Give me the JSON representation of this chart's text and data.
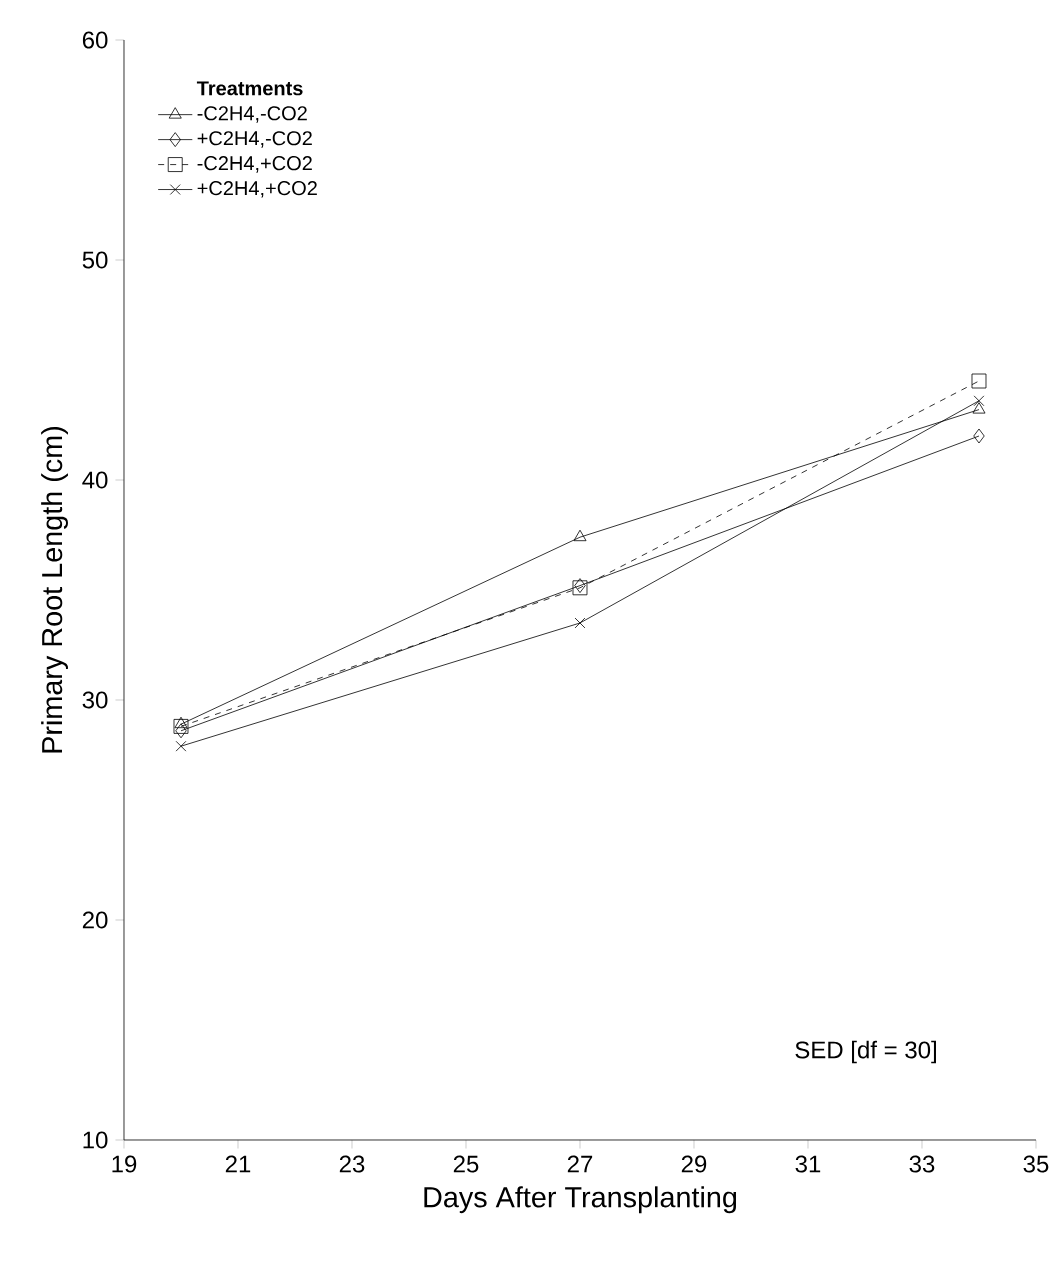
{
  "chart_data": {
    "type": "line",
    "xlabel": "Days After Transplanting",
    "ylabel": "Primary Root Length (cm)",
    "legend_title": "Treatments",
    "legend": "top left",
    "grid": false,
    "x": [
      20,
      27,
      34
    ],
    "xlim": [
      19,
      35
    ],
    "xticks": [
      19,
      21,
      23,
      25,
      27,
      29,
      31,
      33,
      35
    ],
    "ylim": [
      10,
      60
    ],
    "yticks": [
      10,
      20,
      30,
      40,
      50,
      60
    ],
    "series": [
      {
        "name": "-C2H4,-CO2",
        "color": "#000000",
        "marker": "triangle",
        "line_style": "solid",
        "values": [
          28.9,
          37.4,
          43.2
        ]
      },
      {
        "name": "+C2H4,-CO2",
        "color": "#000000",
        "marker": "diamond",
        "line_style": "solid",
        "values": [
          28.6,
          35.2,
          42.0
        ]
      },
      {
        "name": "-C2H4,+CO2",
        "color": "#000000",
        "marker": "square",
        "line_style": "dashed",
        "values": [
          28.8,
          35.1,
          44.5
        ]
      },
      {
        "name": "+C2H4,+CO2",
        "color": "#000000",
        "marker": "cross",
        "line_style": "solid",
        "values": [
          27.9,
          33.5,
          43.6
        ]
      }
    ],
    "annotations": [
      "SED [df = 30]"
    ]
  }
}
